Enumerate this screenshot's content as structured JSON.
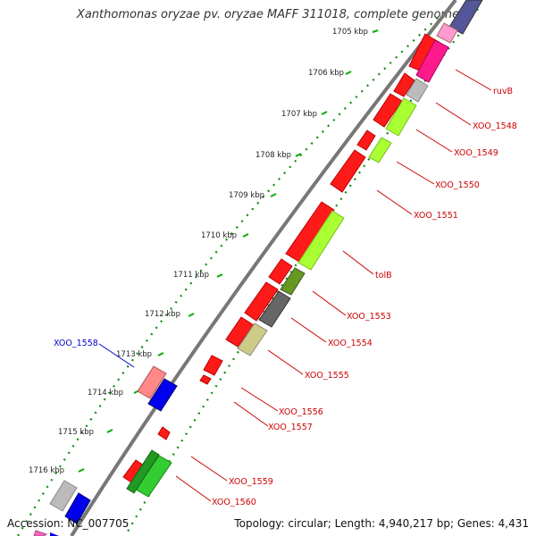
{
  "title": "Xanthomonas oryzae pv. oryzae MAFF 311018, complete genome",
  "accession": "Accession: NC_007705",
  "topology": "Topology: circular; Length: 4,940,217 bp; Genes: 4,431",
  "kbp_ticks": [
    "1705 kbp",
    "1706 kbp",
    "1707 kbp",
    "1708 kbp",
    "1709 kbp",
    "1710 kbp",
    "1711 kbp",
    "1712 kbp",
    "1713 kbp",
    "1714 kbp",
    "1715 kbp",
    "1716 kbp"
  ],
  "gene_labels": [
    "ruvB",
    "XOO_1548",
    "XOO_1549",
    "XOO_1550",
    "XOO_1551",
    "tolB",
    "XOO_1553",
    "XOO_1554",
    "XOO_1555",
    "XOO_1556",
    "XOO_1557",
    "XOO_1558",
    "XOO_1559",
    "XOO_1560"
  ],
  "colors": {
    "forward_label": "#cc0000",
    "reverse_label": "#0000cc",
    "cds": "#ff0000",
    "backbone": "#777777",
    "tick": "#117711"
  }
}
